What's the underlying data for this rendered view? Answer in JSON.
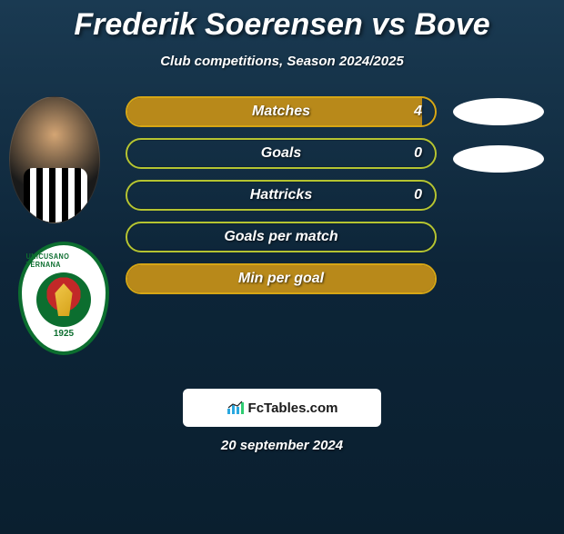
{
  "title": "Frederik Soerensen vs Bove",
  "subtitle": "Club competitions, Season 2024/2025",
  "date": "20 september 2024",
  "brand": {
    "text": "FcTables.com",
    "icon_bars": [
      "#2aa8e0",
      "#2aa8e0",
      "#2aa8e0",
      "#2ecc71"
    ]
  },
  "club": {
    "arc_text": "UNICUSANO TERNANA",
    "year": "1925",
    "outer_border": "#0c6e2f",
    "inner_colors": {
      "top": "#c22828",
      "ring": "#0c6e2f",
      "crest": "#f2c94c"
    }
  },
  "colors": {
    "bar_border_yellow": "#d6a615",
    "bar_fill_yellow": "#b8891a",
    "bar_border_green": "#b5c431",
    "oval_bg": "#ffffff"
  },
  "stats": [
    {
      "label": "Matches",
      "value": "4",
      "has_value": true,
      "fill_pct": 96,
      "style": "yellow",
      "right_oval": true
    },
    {
      "label": "Goals",
      "value": "0",
      "has_value": true,
      "fill_pct": 0,
      "style": "green",
      "right_oval": true
    },
    {
      "label": "Hattricks",
      "value": "0",
      "has_value": true,
      "fill_pct": 0,
      "style": "green",
      "right_oval": false
    },
    {
      "label": "Goals per match",
      "value": "",
      "has_value": false,
      "fill_pct": 0,
      "style": "green",
      "right_oval": false
    },
    {
      "label": "Min per goal",
      "value": "",
      "has_value": false,
      "fill_pct": 100,
      "style": "yellow",
      "right_oval": false
    }
  ]
}
